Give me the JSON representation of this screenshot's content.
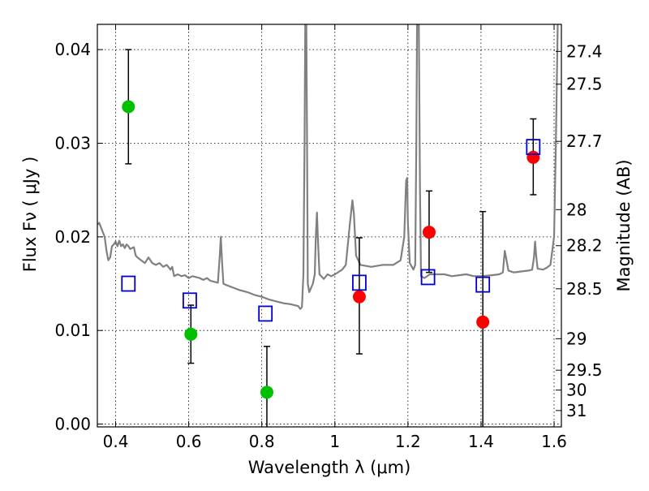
{
  "chart_data": {
    "type": "scatter",
    "xlabel": "Wavelength  λ (μm)",
    "ylabel": "Flux  Fν  ( μJy )",
    "ylabel_right": "Magnitude (AB)",
    "xlim": [
      0.35,
      1.62
    ],
    "ylim": [
      -0.0003,
      0.0427
    ],
    "grid": true,
    "x_ticks": [
      {
        "value": 0.4,
        "label": "0.4"
      },
      {
        "value": 0.6,
        "label": "0.6"
      },
      {
        "value": 0.8,
        "label": "0.8"
      },
      {
        "value": 1.0,
        "label": "1"
      },
      {
        "value": 1.2,
        "label": "1.2"
      },
      {
        "value": 1.4,
        "label": "1.4"
      },
      {
        "value": 1.6,
        "label": "1.6"
      }
    ],
    "y_ticks": [
      {
        "value": 0.0,
        "label": "0.00"
      },
      {
        "value": 0.01,
        "label": "0.01"
      },
      {
        "value": 0.02,
        "label": "0.02"
      },
      {
        "value": 0.03,
        "label": "0.03"
      },
      {
        "value": 0.04,
        "label": "0.04"
      }
    ],
    "mag_ticks": [
      {
        "value": 27.4,
        "label": "27.4"
      },
      {
        "value": 27.5,
        "label": "27.5"
      },
      {
        "value": 27.7,
        "label": "27.7"
      },
      {
        "value": 28.0,
        "label": "28"
      },
      {
        "value": 28.2,
        "label": "28.2"
      },
      {
        "value": 28.5,
        "label": "28.5"
      },
      {
        "value": 29.0,
        "label": "29"
      },
      {
        "value": 29.5,
        "label": "29.5"
      },
      {
        "value": 30.0,
        "label": "30"
      },
      {
        "value": 31.0,
        "label": "31"
      }
    ],
    "series": [
      {
        "marker": "circle",
        "color": "#00c000",
        "points": [
          {
            "x": 0.435,
            "y": 0.0339,
            "err_low": 0.0061,
            "err_high": 0.0061
          },
          {
            "x": 0.606,
            "y": 0.0096,
            "err_low": 0.0031,
            "err_high": 0.0031
          },
          {
            "x": 0.814,
            "y": 0.0034,
            "err_low": 0.0049,
            "err_high": 0.0049
          }
        ]
      },
      {
        "marker": "circle",
        "color": "#ff0000",
        "points": [
          {
            "x": 1.067,
            "y": 0.0136,
            "err_low": 0.0061,
            "err_high": 0.0063
          },
          {
            "x": 1.258,
            "y": 0.0205,
            "err_low": 0.0043,
            "err_high": 0.0044
          },
          {
            "x": 1.405,
            "y": 0.0109,
            "err_low": 0.0117,
            "err_high": 0.0118
          },
          {
            "x": 1.543,
            "y": 0.0285,
            "err_low": 0.004,
            "err_high": 0.0041
          }
        ]
      },
      {
        "marker": "square",
        "color": "#0000cc",
        "points": [
          {
            "x": 0.435,
            "y": 0.015
          },
          {
            "x": 0.603,
            "y": 0.0132
          },
          {
            "x": 0.81,
            "y": 0.0118
          },
          {
            "x": 1.067,
            "y": 0.0151
          },
          {
            "x": 1.255,
            "y": 0.0157
          },
          {
            "x": 1.405,
            "y": 0.0149
          },
          {
            "x": 1.543,
            "y": 0.0296
          }
        ]
      }
    ],
    "spectrum": {
      "color": "#808080",
      "points": [
        [
          0.35,
          0.0213
        ],
        [
          0.355,
          0.0215
        ],
        [
          0.36,
          0.021
        ],
        [
          0.365,
          0.0205
        ],
        [
          0.37,
          0.02
        ],
        [
          0.375,
          0.0185
        ],
        [
          0.38,
          0.0175
        ],
        [
          0.385,
          0.0178
        ],
        [
          0.39,
          0.019
        ],
        [
          0.395,
          0.0192
        ],
        [
          0.4,
          0.0195
        ],
        [
          0.405,
          0.019
        ],
        [
          0.41,
          0.0196
        ],
        [
          0.415,
          0.019
        ],
        [
          0.42,
          0.0192
        ],
        [
          0.425,
          0.0188
        ],
        [
          0.43,
          0.0192
        ],
        [
          0.435,
          0.019
        ],
        [
          0.44,
          0.0187
        ],
        [
          0.45,
          0.0189
        ],
        [
          0.455,
          0.018
        ],
        [
          0.46,
          0.0178
        ],
        [
          0.47,
          0.0175
        ],
        [
          0.48,
          0.0172
        ],
        [
          0.49,
          0.0178
        ],
        [
          0.5,
          0.0172
        ],
        [
          0.51,
          0.017
        ],
        [
          0.52,
          0.0172
        ],
        [
          0.53,
          0.0168
        ],
        [
          0.54,
          0.017
        ],
        [
          0.55,
          0.0165
        ],
        [
          0.555,
          0.0168
        ],
        [
          0.56,
          0.0158
        ],
        [
          0.57,
          0.016
        ],
        [
          0.58,
          0.0158
        ],
        [
          0.59,
          0.0159
        ],
        [
          0.6,
          0.0156
        ],
        [
          0.61,
          0.0158
        ],
        [
          0.62,
          0.0157
        ],
        [
          0.63,
          0.0156
        ],
        [
          0.64,
          0.0154
        ],
        [
          0.65,
          0.0156
        ],
        [
          0.66,
          0.0153
        ],
        [
          0.67,
          0.0152
        ],
        [
          0.68,
          0.0151
        ],
        [
          0.685,
          0.018
        ],
        [
          0.688,
          0.02
        ],
        [
          0.691,
          0.0175
        ],
        [
          0.695,
          0.015
        ],
        [
          0.7,
          0.0149
        ],
        [
          0.72,
          0.0146
        ],
        [
          0.74,
          0.0143
        ],
        [
          0.76,
          0.0141
        ],
        [
          0.78,
          0.0138
        ],
        [
          0.8,
          0.0136
        ],
        [
          0.82,
          0.0133
        ],
        [
          0.84,
          0.0131
        ],
        [
          0.86,
          0.0129
        ],
        [
          0.88,
          0.0128
        ],
        [
          0.9,
          0.0126
        ],
        [
          0.905,
          0.0123
        ],
        [
          0.91,
          0.0125
        ],
        [
          0.914,
          0.016
        ],
        [
          0.917,
          0.03
        ],
        [
          0.919,
          0.0427
        ],
        [
          0.922,
          0.0427
        ],
        [
          0.924,
          0.03
        ],
        [
          0.926,
          0.015
        ],
        [
          0.93,
          0.0141
        ],
        [
          0.94,
          0.015
        ],
        [
          0.945,
          0.016
        ],
        [
          0.948,
          0.02
        ],
        [
          0.951,
          0.0226
        ],
        [
          0.954,
          0.0195
        ],
        [
          0.958,
          0.016
        ],
        [
          0.97,
          0.0155
        ],
        [
          0.98,
          0.016
        ],
        [
          0.99,
          0.0158
        ],
        [
          1.0,
          0.016
        ],
        [
          1.02,
          0.0165
        ],
        [
          1.03,
          0.017
        ],
        [
          1.04,
          0.021
        ],
        [
          1.048,
          0.0239
        ],
        [
          1.052,
          0.0225
        ],
        [
          1.058,
          0.018
        ],
        [
          1.07,
          0.017
        ],
        [
          1.1,
          0.0168
        ],
        [
          1.13,
          0.017
        ],
        [
          1.16,
          0.017
        ],
        [
          1.18,
          0.0175
        ],
        [
          1.19,
          0.02
        ],
        [
          1.195,
          0.026
        ],
        [
          1.198,
          0.0263
        ],
        [
          1.2,
          0.0215
        ],
        [
          1.205,
          0.0172
        ],
        [
          1.215,
          0.0165
        ],
        [
          1.22,
          0.017
        ],
        [
          1.223,
          0.03
        ],
        [
          1.225,
          0.0427
        ],
        [
          1.23,
          0.0427
        ],
        [
          1.233,
          0.025
        ],
        [
          1.236,
          0.0158
        ],
        [
          1.245,
          0.0156
        ],
        [
          1.26,
          0.016
        ],
        [
          1.28,
          0.016
        ],
        [
          1.3,
          0.016
        ],
        [
          1.32,
          0.0158
        ],
        [
          1.34,
          0.0159
        ],
        [
          1.36,
          0.016
        ],
        [
          1.38,
          0.0158
        ],
        [
          1.4,
          0.0158
        ],
        [
          1.43,
          0.0159
        ],
        [
          1.45,
          0.016
        ],
        [
          1.46,
          0.0162
        ],
        [
          1.465,
          0.0185
        ],
        [
          1.47,
          0.0175
        ],
        [
          1.475,
          0.0164
        ],
        [
          1.49,
          0.0162
        ],
        [
          1.51,
          0.0163
        ],
        [
          1.53,
          0.0164
        ],
        [
          1.54,
          0.0165
        ],
        [
          1.545,
          0.0178
        ],
        [
          1.548,
          0.0195
        ],
        [
          1.551,
          0.018
        ],
        [
          1.555,
          0.0166
        ],
        [
          1.57,
          0.0165
        ],
        [
          1.58,
          0.0167
        ],
        [
          1.59,
          0.017
        ],
        [
          1.6,
          0.02
        ],
        [
          1.605,
          0.03
        ],
        [
          1.61,
          0.0427
        ]
      ]
    }
  }
}
